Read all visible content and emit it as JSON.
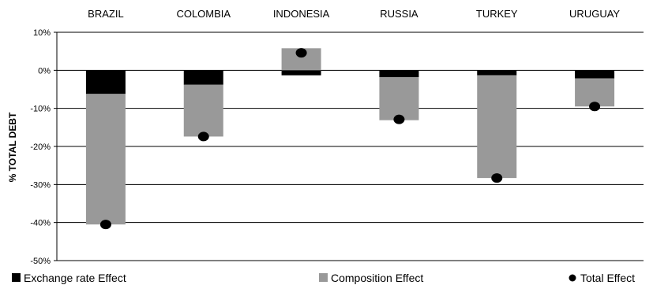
{
  "chart_data": {
    "type": "bar",
    "categories": [
      "BRAZIL",
      "COLOMBIA",
      "INDONESIA",
      "RUSSIA",
      "TURKEY",
      "URUGUAY"
    ],
    "series": [
      {
        "name": "Exchange rate Effect",
        "kind": "stacked-bar",
        "color": "#000000",
        "values": [
          -6.2,
          -3.8,
          -1.3,
          -1.8,
          -1.3,
          -2.1
        ]
      },
      {
        "name": "Composition Effect",
        "kind": "stacked-bar",
        "color": "#999999",
        "values": [
          -34.3,
          -13.6,
          5.8,
          -11.3,
          -27.0,
          -7.4
        ]
      },
      {
        "name": "Total Effect",
        "kind": "marker",
        "color": "#000000",
        "values": [
          -40.5,
          -17.4,
          4.6,
          -12.9,
          -28.3,
          -9.5
        ]
      }
    ],
    "ylabel": "% TOTAL DEBT",
    "ylim": [
      -50,
      10
    ],
    "yticks": [
      10,
      0,
      -10,
      -20,
      -30,
      -40,
      -50
    ],
    "ytick_labels": [
      "10%",
      "0%",
      "-10%",
      "-20%",
      "-30%",
      "-40%",
      "-50%"
    ],
    "grid": true,
    "legend": "bottom"
  }
}
